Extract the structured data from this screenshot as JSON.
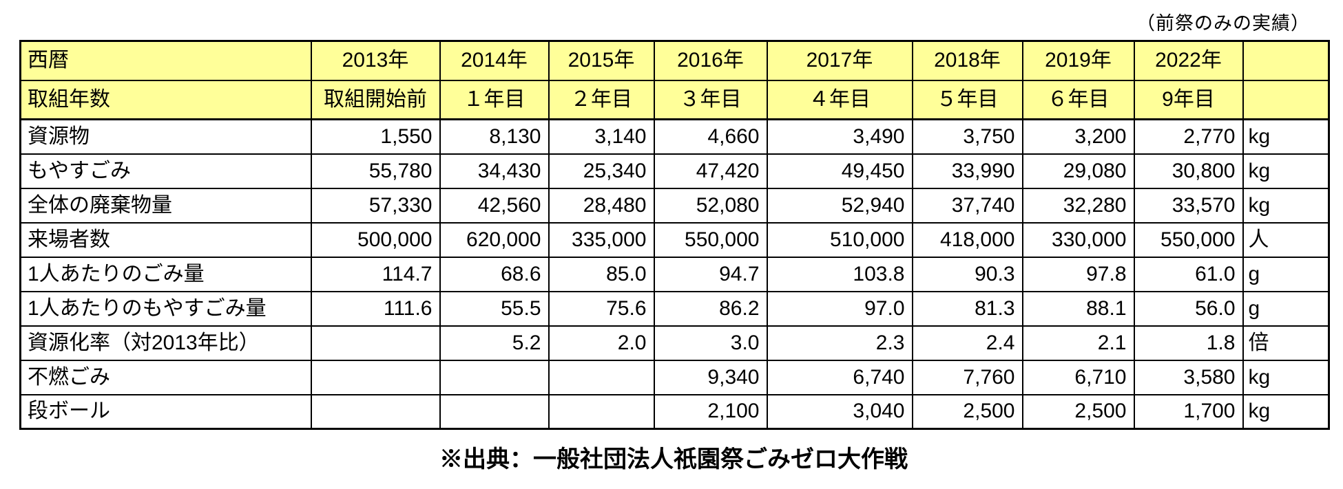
{
  "page": {
    "top_note": "（前祭のみの実績）",
    "source_note": "※出典：一般社団法人祇園祭ごみゼロ大作戦"
  },
  "colors": {
    "header_bg": "#FFFF99",
    "border": "#000000",
    "background": "#FFFFFF",
    "text": "#000000"
  },
  "chart_data": {
    "type": "table",
    "header_rows": [
      {
        "row_label": "西暦",
        "cells": [
          "2013年",
          "2014年",
          "2015年",
          "2016年",
          "2017年",
          "2018年",
          "2019年",
          "2022年",
          ""
        ]
      },
      {
        "row_label": "取組年数",
        "cells": [
          "取組開始前",
          "１年目",
          "２年目",
          "３年目",
          "４年目",
          "５年目",
          "６年目",
          "9年目",
          ""
        ]
      }
    ],
    "data_rows": [
      {
        "label": "資源物",
        "values": [
          "1,550",
          "8,130",
          "3,140",
          "4,660",
          "3,490",
          "3,750",
          "3,200",
          "2,770"
        ],
        "unit": "kg"
      },
      {
        "label": "もやすごみ",
        "values": [
          "55,780",
          "34,430",
          "25,340",
          "47,420",
          "49,450",
          "33,990",
          "29,080",
          "30,800"
        ],
        "unit": "kg"
      },
      {
        "label": "全体の廃棄物量",
        "values": [
          "57,330",
          "42,560",
          "28,480",
          "52,080",
          "52,940",
          "37,740",
          "32,280",
          "33,570"
        ],
        "unit": "kg"
      },
      {
        "label": "来場者数",
        "values": [
          "500,000",
          "620,000",
          "335,000",
          "550,000",
          "510,000",
          "418,000",
          "330,000",
          "550,000"
        ],
        "unit": "人"
      },
      {
        "label": "1人あたりのごみ量",
        "values": [
          "114.7",
          "68.6",
          "85.0",
          "94.7",
          "103.8",
          "90.3",
          "97.8",
          "61.0"
        ],
        "unit": "g"
      },
      {
        "label": "1人あたりのもやすごみ量",
        "values": [
          "111.6",
          "55.5",
          "75.6",
          "86.2",
          "97.0",
          "81.3",
          "88.1",
          "56.0"
        ],
        "unit": "g"
      },
      {
        "label": "資源化率（対2013年比）",
        "values": [
          "",
          "5.2",
          "2.0",
          "3.0",
          "2.3",
          "2.4",
          "2.1",
          "1.8"
        ],
        "unit": "倍"
      },
      {
        "label": "不燃ごみ",
        "values": [
          "",
          "",
          "",
          "9,340",
          "6,740",
          "7,760",
          "6,710",
          "3,580"
        ],
        "unit": "kg"
      },
      {
        "label": "段ボール",
        "values": [
          "",
          "",
          "",
          "2,100",
          "3,040",
          "2,500",
          "2,500",
          "1,700"
        ],
        "unit": "kg"
      }
    ]
  }
}
